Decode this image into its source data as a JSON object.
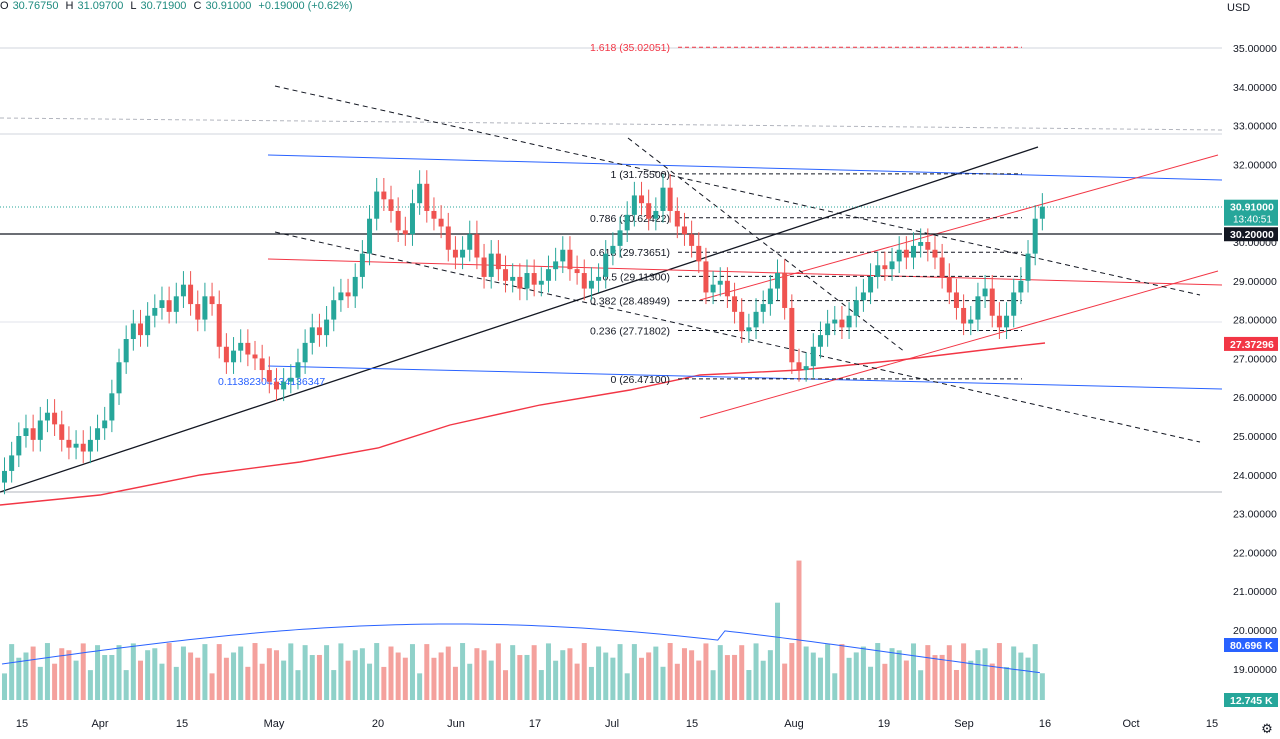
{
  "header": {
    "open_label": "O",
    "open": "30.76750",
    "high_label": "H",
    "high": "31.09700",
    "low_label": "L",
    "low": "30.71900",
    "close_label": "C",
    "close": "30.91000",
    "change": "+0.19000 (+0.62%)"
  },
  "currency_button": "USD",
  "settings_icon": "gear-icon",
  "chart_data": {
    "type": "candlestick",
    "x_ticks": [
      "15",
      "Apr",
      "15",
      "May",
      "20",
      "Jun",
      "17",
      "Jul",
      "15",
      "Aug",
      "19",
      "Sep",
      "16",
      "Oct",
      "15"
    ],
    "y_ticks": [
      "35.00000",
      "34.00000",
      "33.00000",
      "32.00000",
      "31.00000",
      "30.00000",
      "29.00000",
      "28.00000",
      "27.00000",
      "26.00000",
      "25.00000",
      "24.00000",
      "23.00000",
      "22.00000",
      "21.00000",
      "20.00000",
      "19.00000"
    ],
    "price_badges": [
      {
        "label": "30.91000",
        "sub": "13:40:51",
        "value": 30.91,
        "color": "#26a69a"
      },
      {
        "label": "30.20000",
        "value": 30.2,
        "color": "#131722"
      },
      {
        "label": "27.37296",
        "value": 27.37296,
        "color": "#f23645"
      }
    ],
    "volume_badges": [
      {
        "label": "80.696 K",
        "color": "#2962ff"
      },
      {
        "label": "12.745 K",
        "color": "#26a69a"
      }
    ],
    "fib_levels": [
      {
        "label": "1.618 (35.02051)",
        "value": 35.02051
      },
      {
        "label": "1 (31.75500)",
        "value": 31.755
      },
      {
        "label": "0.786 (30.62422)",
        "value": 30.62422
      },
      {
        "label": "0.618 (29.73651)",
        "value": 29.73651
      },
      {
        "label": "0.5 (29.11300)",
        "value": 29.113
      },
      {
        "label": "0.382 (28.48949)",
        "value": 28.48949
      },
      {
        "label": "0.236 (27.71802)",
        "value": 27.71802
      },
      {
        "label": "0 (26.47100)",
        "value": 26.471
      }
    ],
    "ray_label": "0.11382304134136347",
    "candles_close": [
      24.1,
      24.5,
      25.0,
      25.2,
      24.9,
      25.4,
      25.6,
      25.3,
      24.9,
      24.7,
      24.8,
      24.6,
      24.9,
      25.2,
      25.4,
      26.1,
      26.9,
      27.5,
      27.9,
      27.6,
      28.1,
      28.3,
      28.5,
      28.2,
      28.6,
      28.9,
      28.4,
      28.0,
      28.6,
      28.4,
      27.3,
      26.9,
      27.2,
      27.4,
      27.1,
      27.0,
      26.7,
      26.4,
      26.2,
      26.4,
      26.5,
      26.9,
      27.4,
      27.8,
      27.6,
      28.0,
      28.5,
      28.7,
      28.6,
      29.1,
      29.7,
      30.6,
      31.3,
      31.1,
      30.8,
      30.3,
      30.2,
      31.0,
      31.5,
      30.8,
      30.6,
      30.4,
      29.8,
      29.6,
      29.8,
      30.2,
      29.6,
      29.1,
      29.7,
      29.3,
      29.0,
      29.1,
      28.8,
      29.2,
      28.9,
      29.0,
      29.3,
      29.5,
      29.8,
      29.3,
      29.2,
      28.8,
      29.0,
      29.1,
      29.7,
      29.9,
      30.3,
      30.7,
      31.2,
      31.0,
      30.6,
      30.8,
      31.4,
      30.8,
      30.4,
      30.2,
      29.9,
      29.5,
      28.7,
      28.9,
      29.0,
      28.6,
      28.2,
      27.7,
      27.8,
      28.2,
      28.4,
      28.8,
      29.2,
      28.3,
      26.9,
      26.7,
      26.8,
      27.3,
      27.6,
      27.9,
      28.0,
      27.8,
      28.1,
      28.5,
      28.7,
      29.1,
      29.4,
      29.3,
      29.5,
      29.8,
      29.6,
      29.9,
      30.0,
      29.8,
      29.6,
      29.1,
      28.7,
      28.3,
      27.9,
      28.0,
      28.6,
      28.8,
      28.1,
      27.8,
      28.1,
      28.7,
      29.0,
      29.7,
      30.6,
      30.91
    ],
    "volume_max": 22.5
  }
}
